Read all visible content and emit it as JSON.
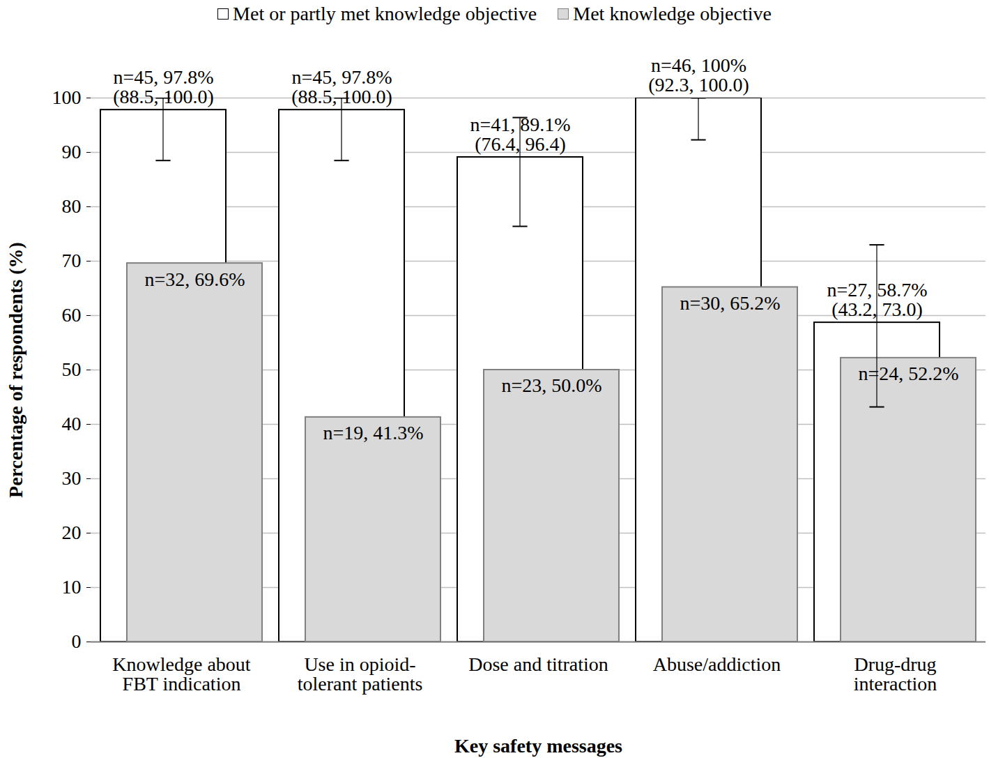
{
  "chart_data": {
    "type": "bar",
    "categories": [
      "Knowledge about\nFBT indication",
      "Use in opioid-\ntolerant patients",
      "Dose and titration",
      "Abuse/addiction",
      "Drug-drug\ninteraction"
    ],
    "x_label": "Key safety messages",
    "y_label": "Percentage of respondents (%)",
    "ylim": [
      0,
      100
    ],
    "yticks": [
      0,
      10,
      20,
      30,
      40,
      50,
      60,
      70,
      80,
      90,
      100
    ],
    "grid": true,
    "legend": "top",
    "data_labels": true,
    "series": [
      {
        "name": "Met or partly met knowledge objective",
        "color": "#ffffff",
        "values": [
          97.8,
          97.8,
          89.1,
          100,
          58.7
        ],
        "value_labels": [
          "n=45, 97.8%\n(88.5, 100.0)",
          "n=45, 97.8%\n(88.5, 100.0)",
          "n=41, 89.1%\n(76.4, 96.4)",
          "n=46, 100%\n(92.3, 100.0)",
          "n=27, 58.7%\n(43.2, 73.0)"
        ],
        "error_low": [
          88.5,
          88.5,
          76.4,
          92.3,
          43.2
        ],
        "error_high": [
          100.0,
          100.0,
          96.4,
          100.0,
          73.0
        ]
      },
      {
        "name": "Met knowledge objective",
        "color": "#d9d9d9",
        "values": [
          69.6,
          41.3,
          50.0,
          65.2,
          52.2
        ],
        "value_labels": [
          "n=32, 69.6%",
          "n=19, 41.3%",
          "n=23, 50.0%",
          "n=30, 65.2%",
          "n=24, 52.2%"
        ]
      }
    ]
  }
}
